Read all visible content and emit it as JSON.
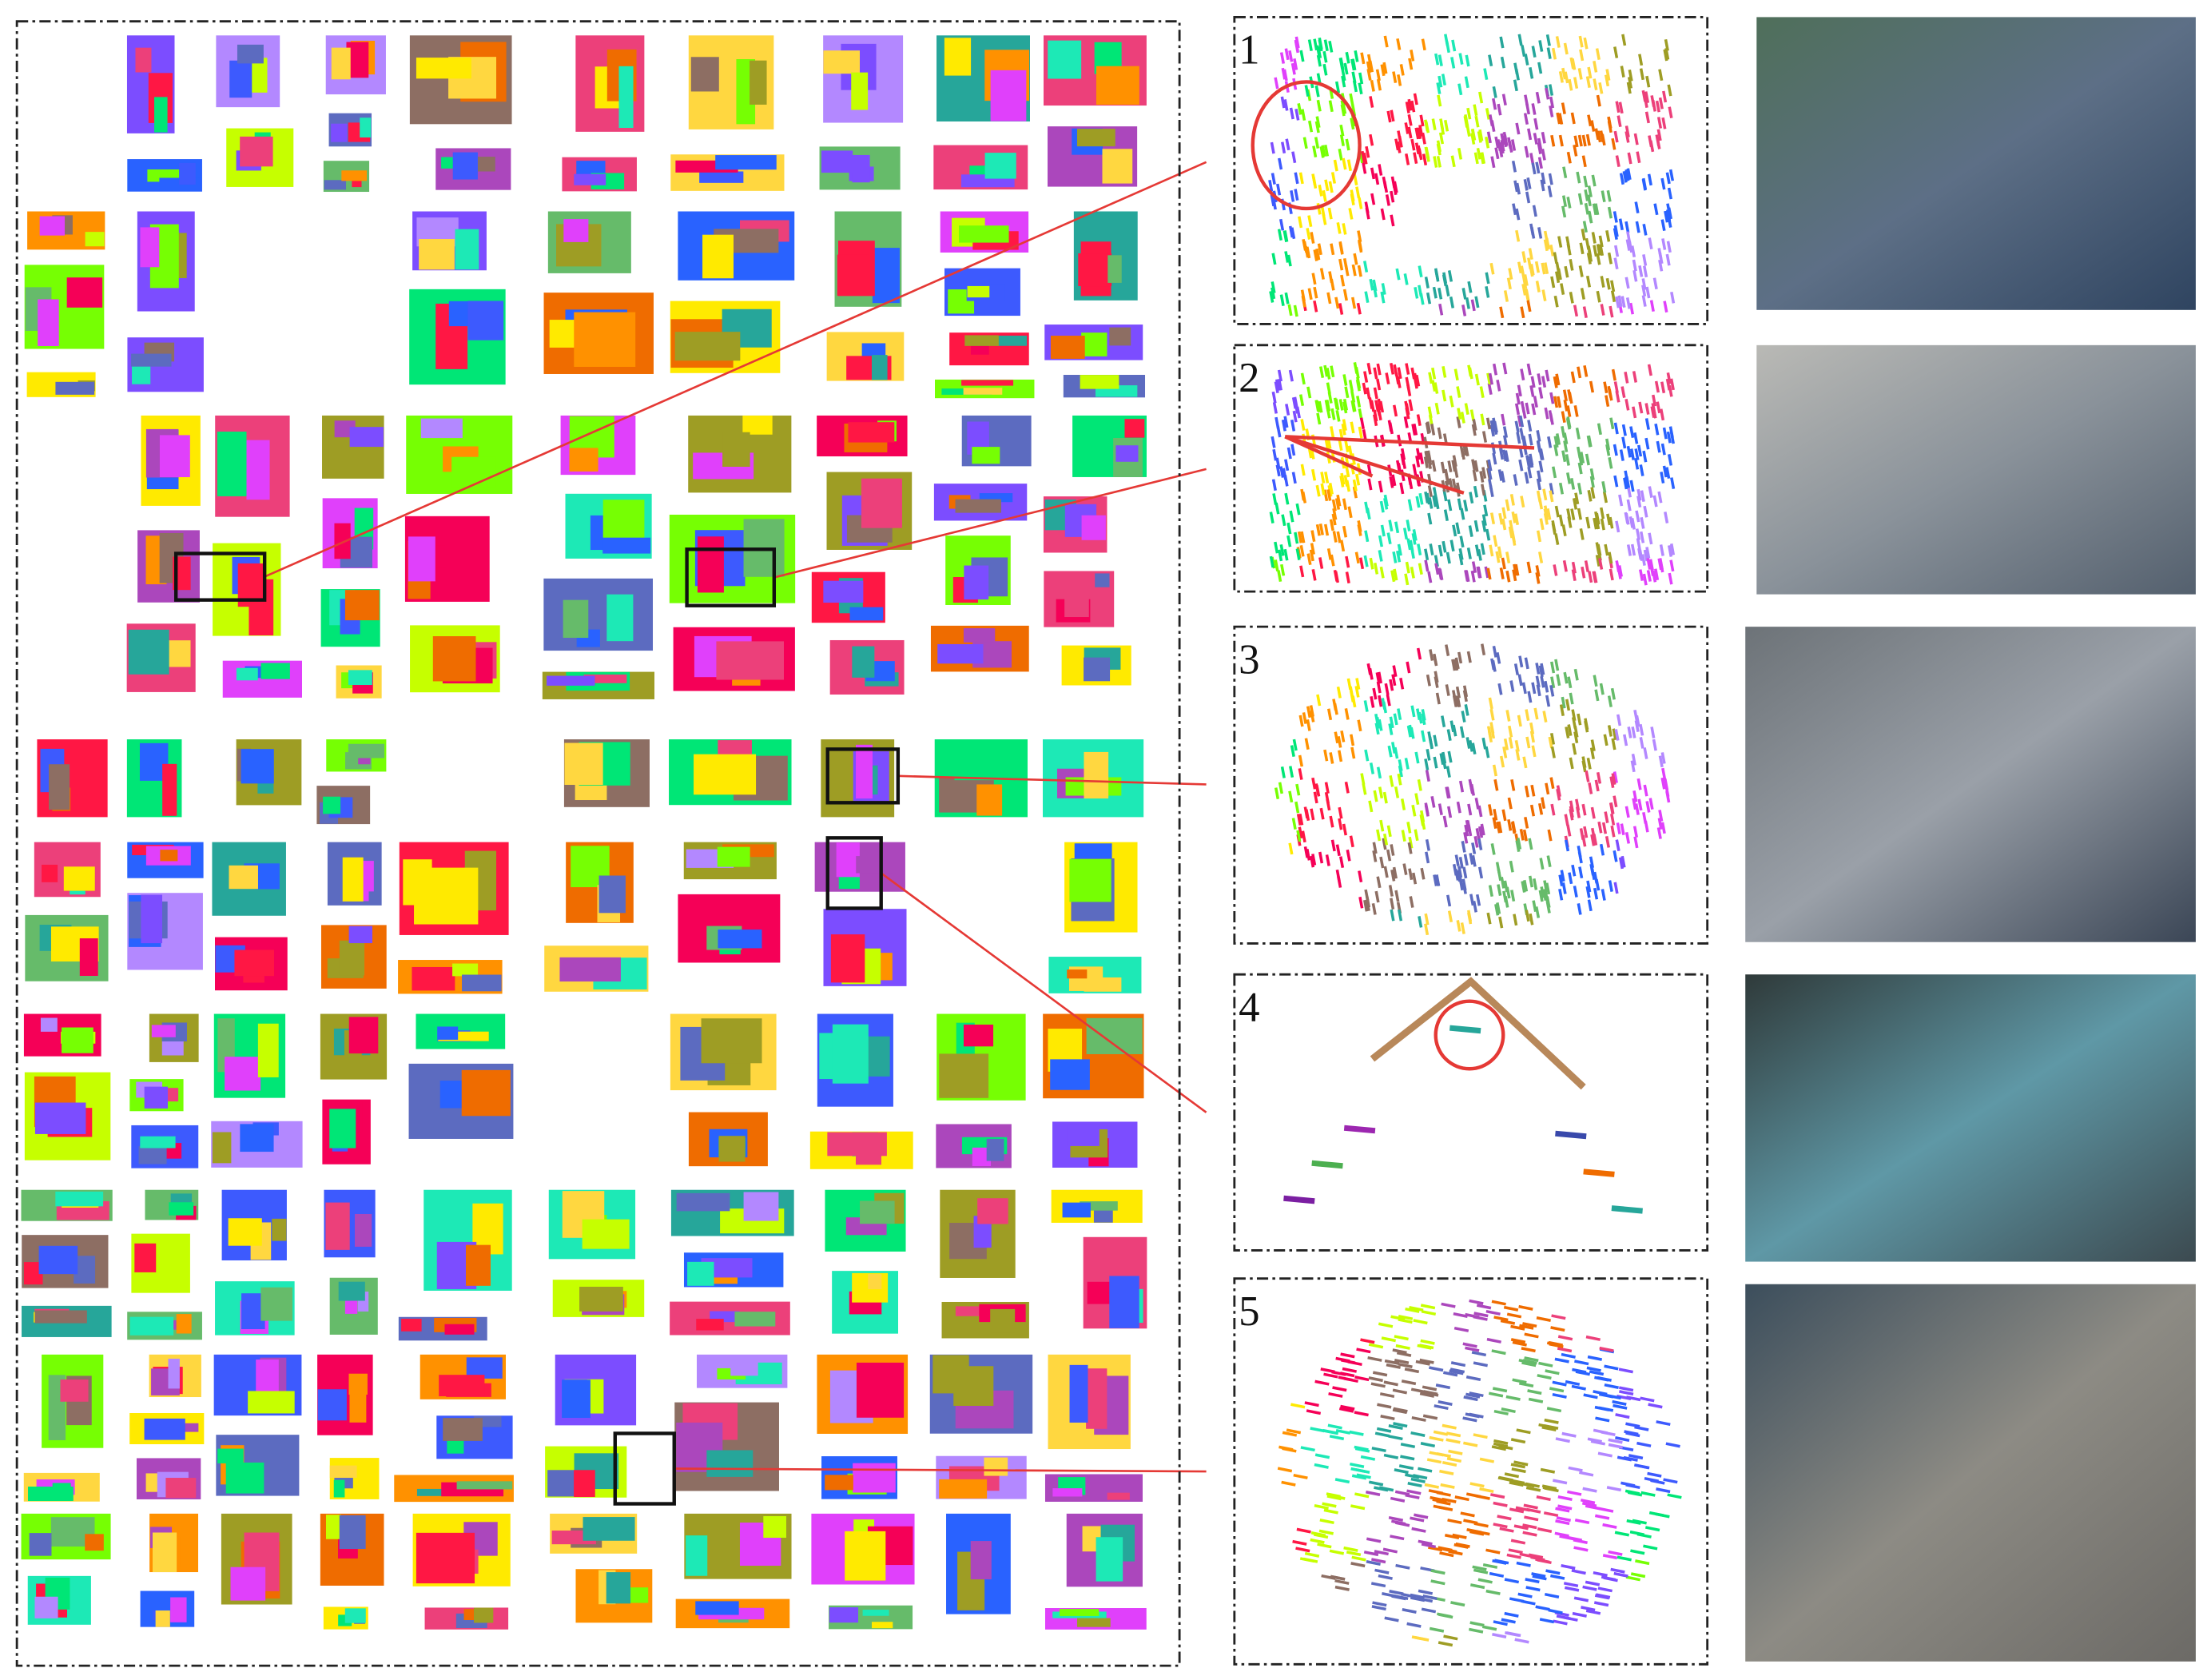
{
  "panels": [
    {
      "label": "1"
    },
    {
      "label": "2"
    },
    {
      "label": "3"
    },
    {
      "label": "4"
    },
    {
      "label": "5"
    }
  ]
}
